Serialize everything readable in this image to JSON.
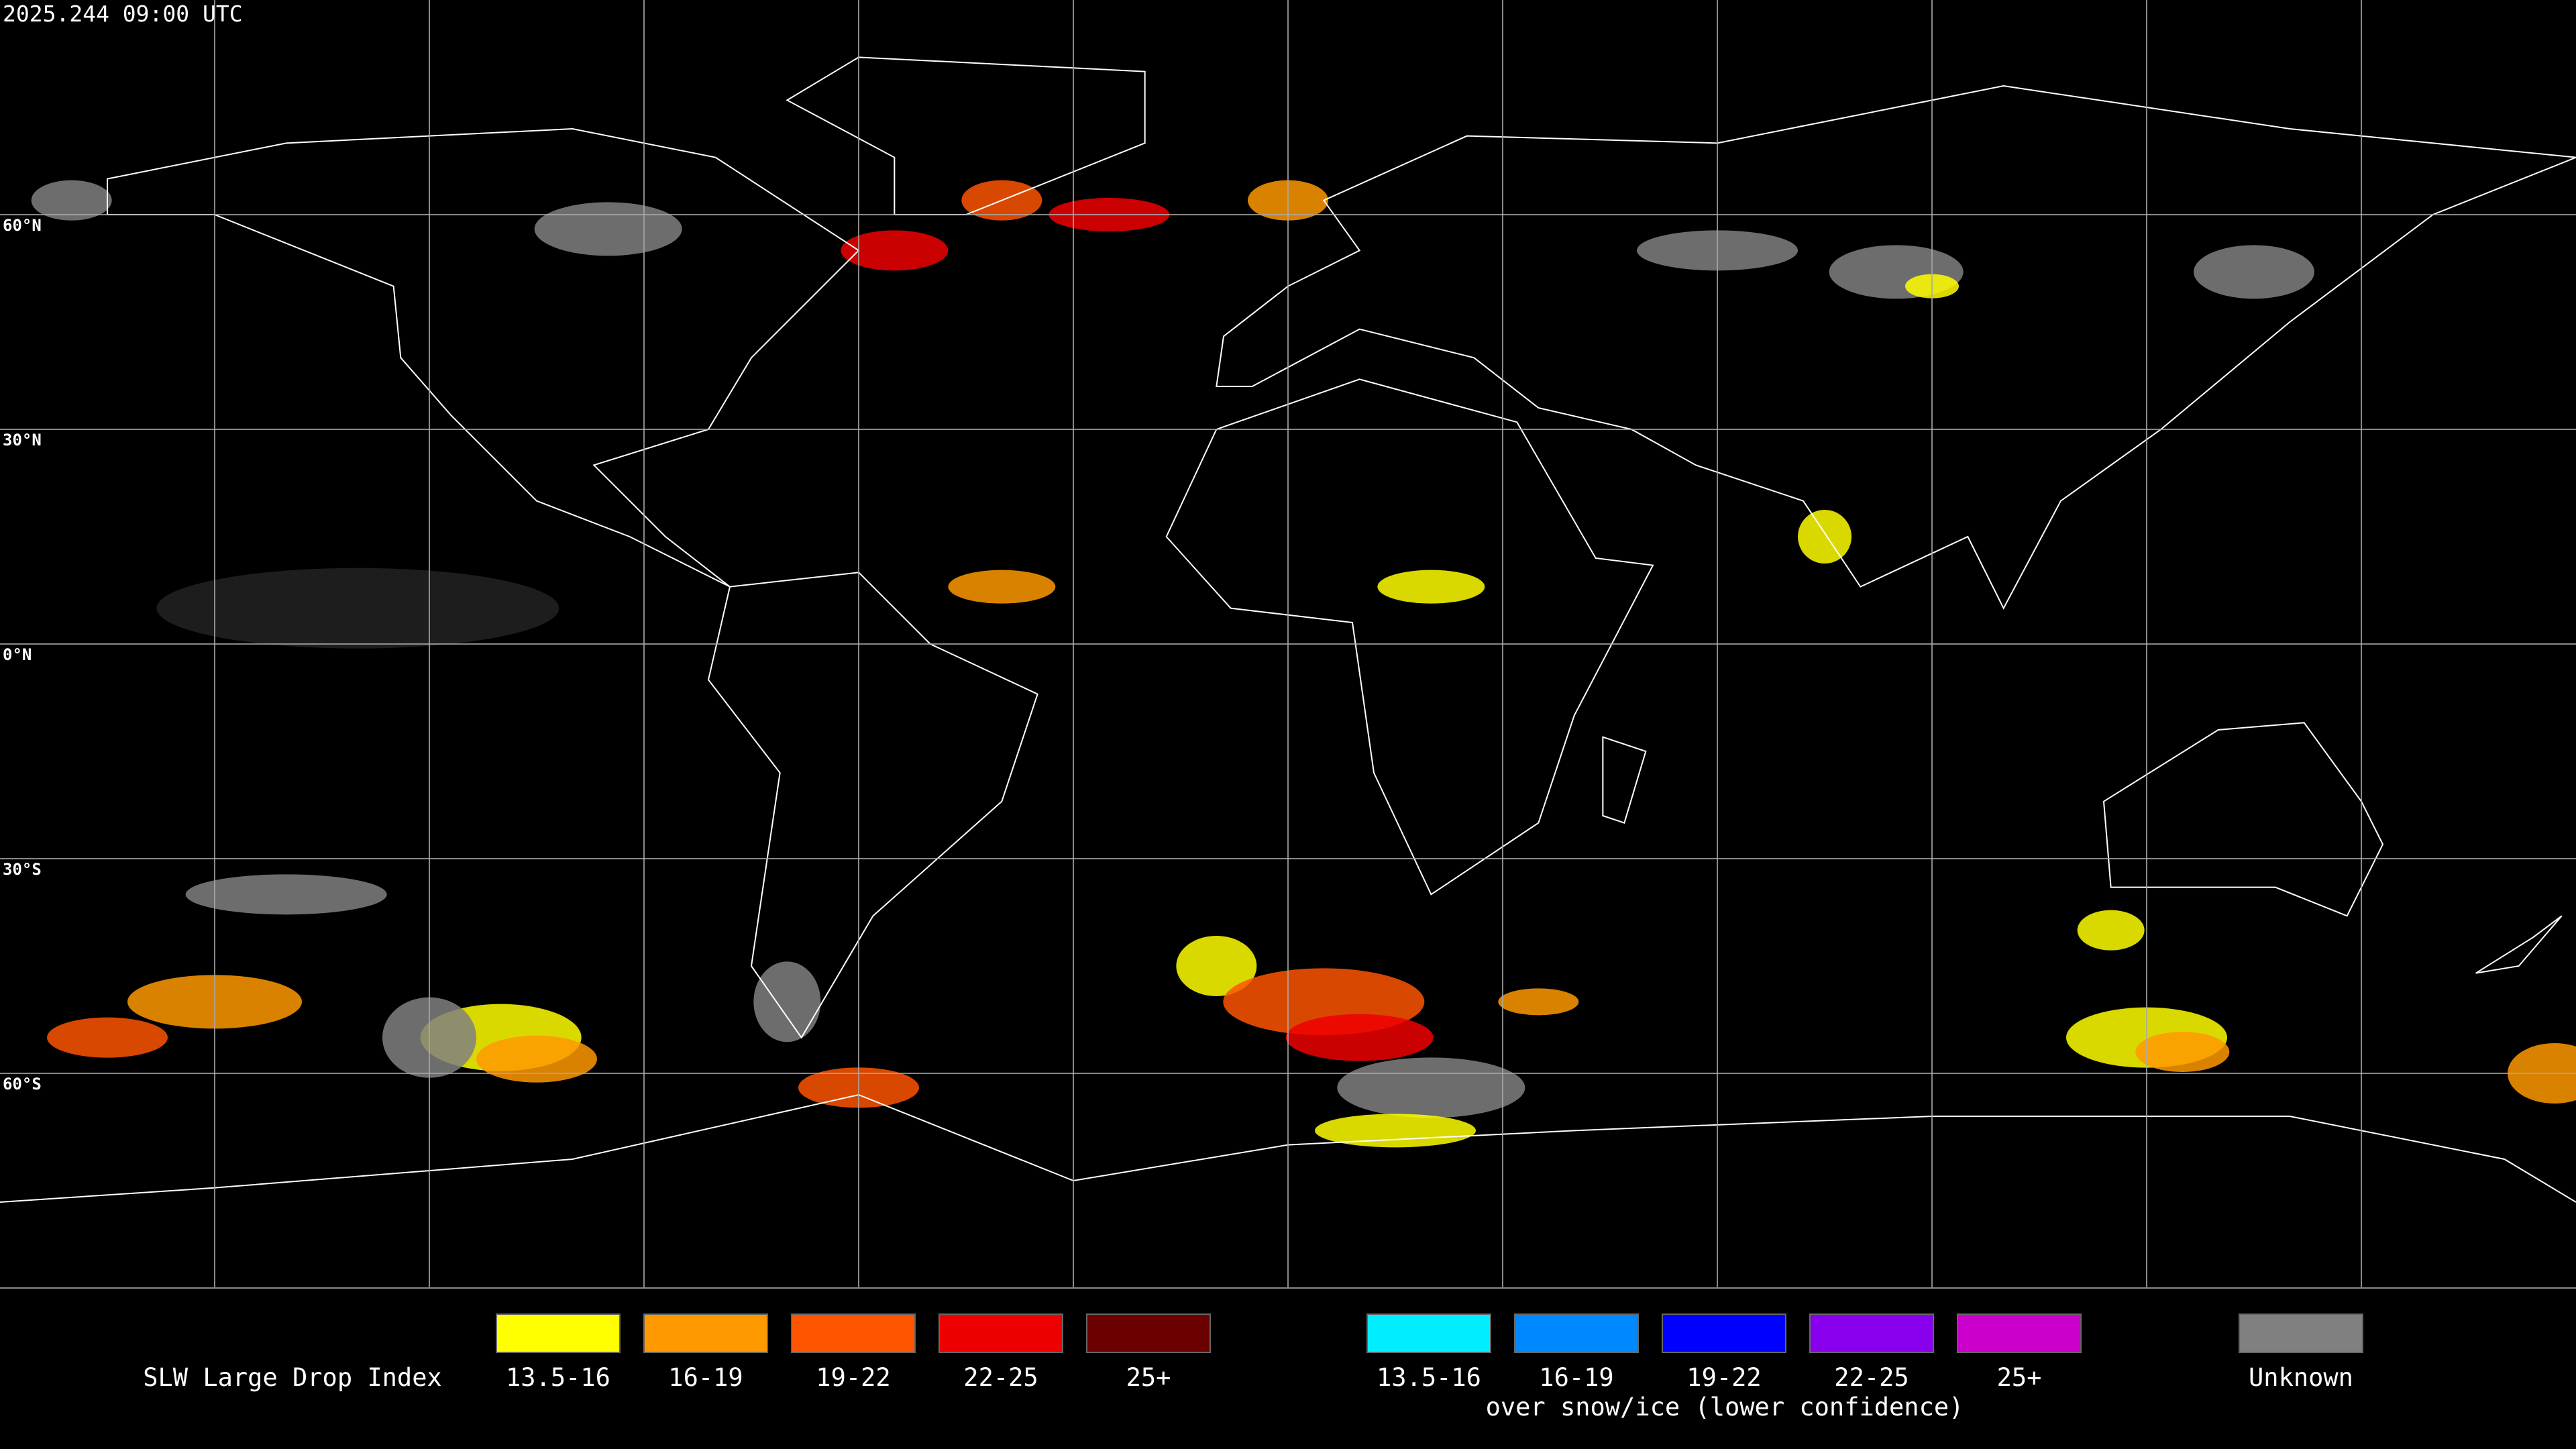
{
  "header": {
    "title": "2025.244 09:00 UTC"
  },
  "map": {
    "latitude_labels": [
      "60°N",
      "30°N",
      "0°N",
      "30°S",
      "60°S"
    ]
  },
  "legend": {
    "title": "SLW Large Drop Index",
    "groups": [
      {
        "items": [
          {
            "label": "13.5-16",
            "color": "#ffff00"
          },
          {
            "label": "16-19",
            "color": "#ff9900"
          },
          {
            "label": "19-22",
            "color": "#ff5500"
          },
          {
            "label": "22-25",
            "color": "#ee0000"
          },
          {
            "label": "25+",
            "color": "#6b0000"
          }
        ]
      },
      {
        "items": [
          {
            "label": "13.5-16",
            "color": "#00eeff"
          },
          {
            "label": "16-19",
            "color": "#0088ff"
          },
          {
            "label": "19-22",
            "color": "#0000ff"
          },
          {
            "label": "22-25",
            "color": "#8800ee"
          },
          {
            "label": "25+",
            "color": "#cc00cc"
          }
        ],
        "caption": "over snow/ice (lower confidence)"
      }
    ],
    "unknown": {
      "label": "Unknown",
      "color": "#808080"
    }
  }
}
